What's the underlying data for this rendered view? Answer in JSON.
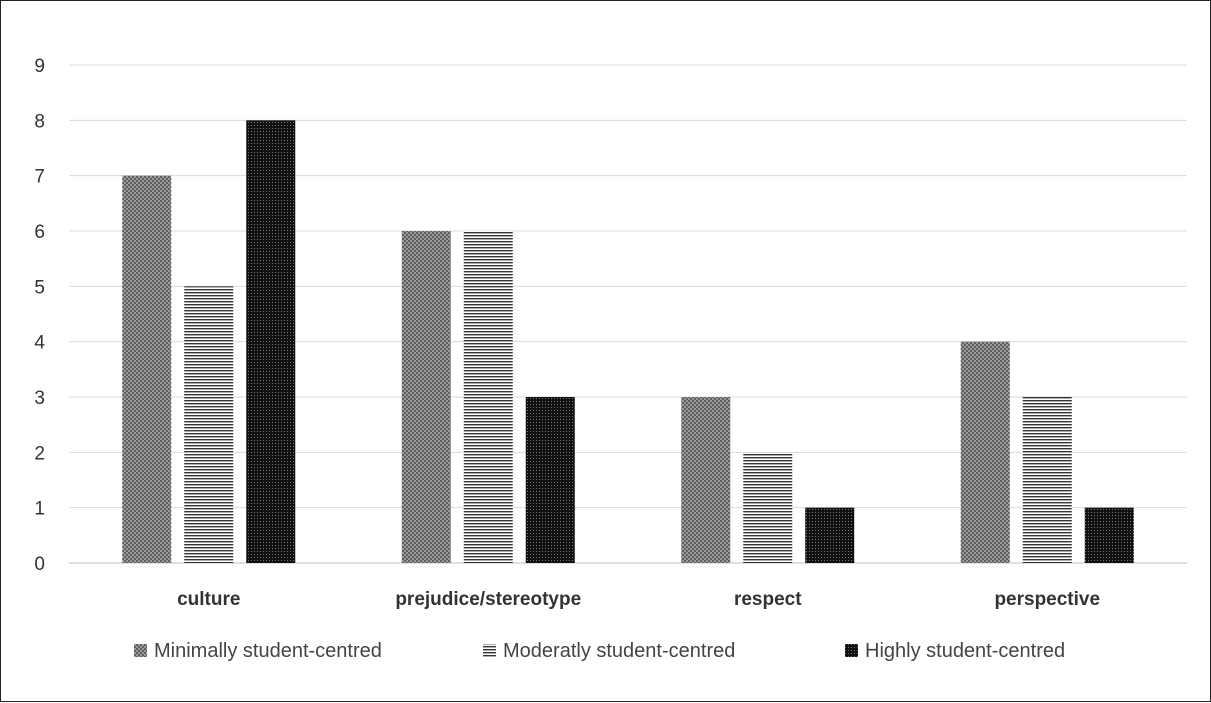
{
  "chart_data": {
    "type": "bar",
    "categories": [
      "culture",
      "prejudice/stereotype",
      "respect",
      "perspective"
    ],
    "series": [
      {
        "name": "Minimally student-centred",
        "values": [
          7,
          6,
          3,
          4
        ],
        "pattern": "diagonal-grid",
        "color": "#7a7a7a"
      },
      {
        "name": "Moderatly student-centred",
        "values": [
          5,
          6,
          2,
          3
        ],
        "pattern": "horizontal-lines",
        "color": "#333333"
      },
      {
        "name": "Highly student-centred",
        "values": [
          8,
          3,
          1,
          1
        ],
        "pattern": "dotted-dark",
        "color": "#1a1a1a"
      }
    ],
    "yticks": [
      "0",
      "1",
      "2",
      "3",
      "4",
      "5",
      "6",
      "7",
      "8",
      "9"
    ],
    "ylim": [
      0,
      9
    ],
    "grid": true,
    "legend_position": "bottom",
    "title": "",
    "xlabel": "",
    "ylabel": ""
  }
}
